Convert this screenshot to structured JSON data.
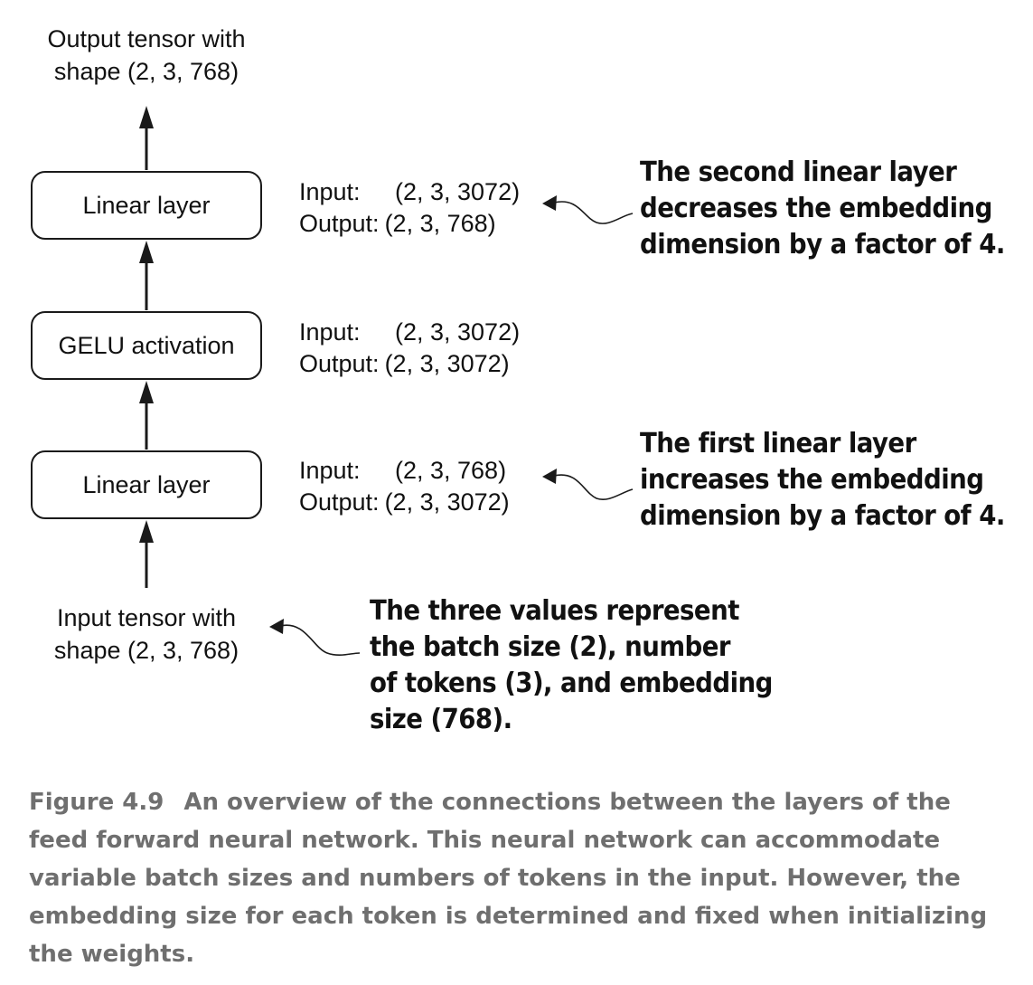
{
  "output_tensor": {
    "line1": "Output tensor with",
    "line2": "shape (2, 3, 768)"
  },
  "input_tensor": {
    "line1": "Input tensor with",
    "line2": "shape (2, 3, 768)"
  },
  "layers": [
    {
      "label": "Linear layer",
      "input_key": "Input:",
      "input_value": "(2, 3, 3072)",
      "output_key": "Output:",
      "output_value": "(2, 3, 768)"
    },
    {
      "label": "GELU activation",
      "input_key": "Input:",
      "input_value": "(2, 3, 3072)",
      "output_key": "Output:",
      "output_value": "(2, 3, 3072)"
    },
    {
      "label": "Linear layer",
      "input_key": "Input:",
      "input_value": "(2, 3, 768)",
      "output_key": "Output:",
      "output_value": "(2, 3, 3072)"
    }
  ],
  "annotations": {
    "second_linear": [
      "The second linear layer",
      "decreases the embedding",
      "dimension by a factor of 4."
    ],
    "first_linear": [
      "The first linear layer",
      "increases the embedding",
      "dimension by a factor of 4."
    ],
    "input_values": [
      "The three values represent",
      "the batch size (2), number",
      "of tokens (3), and embedding",
      "size (768)."
    ]
  },
  "caption": {
    "label": "Figure 4.9",
    "text": "An overview of the connections between the layers of the feed forward neural network. This neural network can accommodate variable batch sizes and numbers of tokens in the input. However, the embedding size for each token is determined and fixed when initializing the weights."
  },
  "colors": {
    "stroke": "#1a1a1a",
    "caption": "#6f6f6f"
  }
}
